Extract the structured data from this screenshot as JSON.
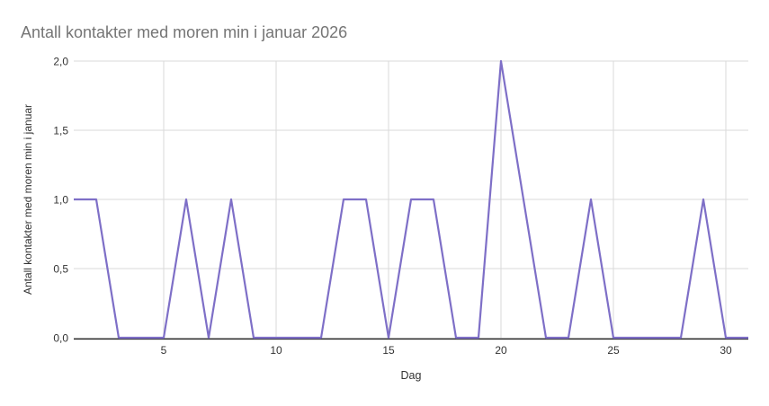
{
  "chart_data": {
    "type": "line",
    "title": "Antall kontakter med moren min i januar 2026",
    "xlabel": "Dag",
    "ylabel": "Antall kontakter med moren min i januar",
    "x": [
      1,
      2,
      3,
      4,
      5,
      6,
      7,
      8,
      9,
      10,
      11,
      12,
      13,
      14,
      15,
      16,
      17,
      18,
      19,
      20,
      21,
      22,
      23,
      24,
      25,
      26,
      27,
      28,
      29,
      30,
      31
    ],
    "series": [
      {
        "name": "Antall kontakter med moren min i januar",
        "values": [
          1,
          1,
          0,
          0,
          0,
          1,
          0,
          1,
          0,
          0,
          0,
          0,
          1,
          1,
          0,
          1,
          1,
          0,
          0,
          2,
          1,
          0,
          0,
          1,
          0,
          0,
          0,
          0,
          1,
          0,
          0
        ]
      }
    ],
    "xlim": [
      1,
      31
    ],
    "ylim": [
      0,
      2
    ],
    "x_ticks": [
      {
        "value": 5,
        "label": "5"
      },
      {
        "value": 10,
        "label": "10"
      },
      {
        "value": 15,
        "label": "15"
      },
      {
        "value": 20,
        "label": "20"
      },
      {
        "value": 25,
        "label": "25"
      },
      {
        "value": 30,
        "label": "30"
      }
    ],
    "y_ticks": [
      {
        "value": 0,
        "label": "0,0"
      },
      {
        "value": 0.5,
        "label": "0,5"
      },
      {
        "value": 1,
        "label": "1,0"
      },
      {
        "value": 1.5,
        "label": "1,5"
      },
      {
        "value": 2,
        "label": "2,0"
      }
    ],
    "grid": true,
    "legend_position": "none",
    "colors": {
      "line": "#7E6FC7",
      "grid": "#DADADA",
      "axis": "#333333",
      "title": "#757575",
      "tick_text": "#333333",
      "background": "#FFFFFF"
    }
  }
}
